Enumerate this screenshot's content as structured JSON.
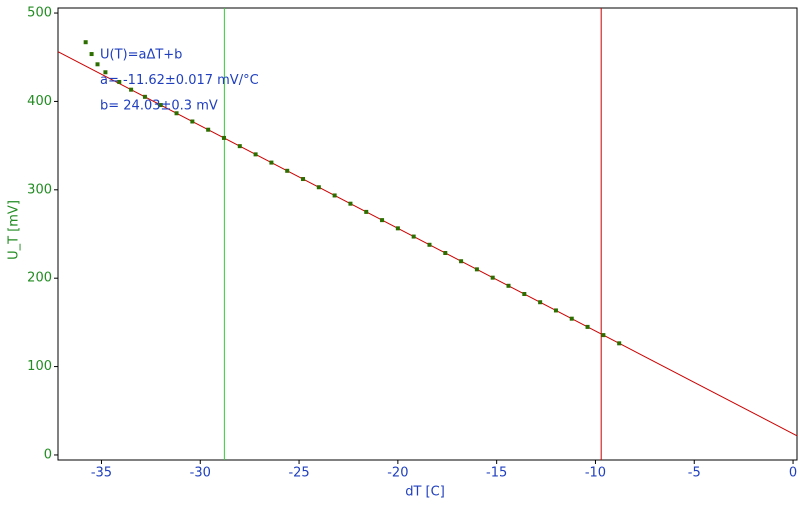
{
  "chart_data": {
    "type": "scatter",
    "xlabel": "dT [C]",
    "ylabel": "U_T [mV]",
    "annotations": [
      "U(T)=aΔT+b",
      "a= -11.62±0.017 mV/°C",
      "b= 24.03±0.3 mV"
    ],
    "xlim": [
      -37.2,
      0.2
    ],
    "ylim": [
      -5.7,
      505.7
    ],
    "xticks": [
      -35,
      -30,
      -25,
      -20,
      -15,
      -10,
      -5,
      0
    ],
    "yticks": [
      0,
      100,
      200,
      300,
      400,
      500
    ],
    "series": [
      {
        "color": "#2d6e00",
        "x": [
          -35.8,
          -35.5,
          -35.2,
          -34.8,
          -34.1,
          -33.5,
          -32.8,
          -32,
          -31.2,
          -30.4,
          -29.6,
          -28.8,
          -28,
          -27.2,
          -26.4,
          -25.6,
          -24.8,
          -24,
          -23.2,
          -22.4,
          -21.6,
          -20.8,
          -20,
          -19.2,
          -18.4,
          -17.6,
          -16.8,
          -16,
          -15.2,
          -14.4,
          -13.6,
          -12.8,
          -12,
          -11.2,
          -10.4,
          -9.6,
          -8.8
        ],
        "values": [
          467,
          453.6,
          442,
          433,
          422,
          413.3,
          405.2,
          395.9,
          386.6,
          377.3,
          368,
          358.7,
          349.4,
          340.1,
          330.8,
          321.5,
          312.2,
          302.9,
          293.6,
          284.3,
          275,
          265.7,
          256.4,
          247.1,
          237.8,
          228.5,
          219.2,
          210,
          200.6,
          191.4,
          182.1,
          172.8,
          163.5,
          154.2,
          144.9,
          135.6,
          126.3
        ]
      }
    ],
    "fit_line": {
      "color": "#cc0000",
      "x": [
        -37.2,
        0.2
      ],
      "values": [
        456.3,
        21.7
      ]
    },
    "cursors": [
      {
        "value": -28.78,
        "color": "#33cc33"
      },
      {
        "value": -9.71,
        "color": "#cc0000"
      }
    ]
  }
}
